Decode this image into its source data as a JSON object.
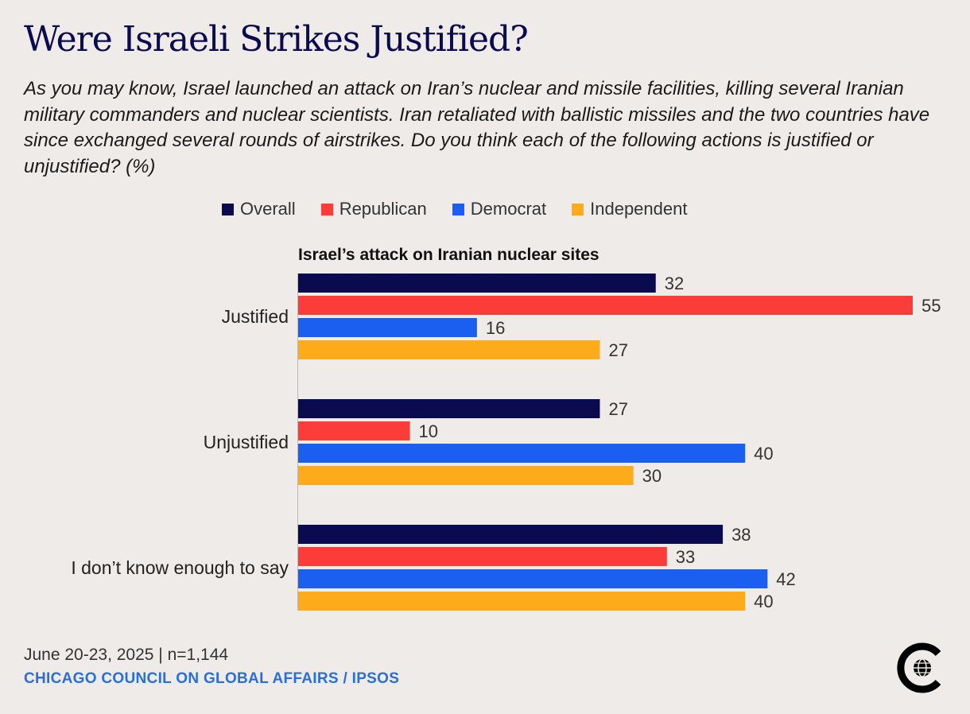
{
  "header": {
    "title": "Were Israeli Strikes Justified?",
    "subtitle": "As you may know, Israel launched an attack on Iran’s nuclear and missile facilities, killing several Iranian military commanders and nuclear scientists. Iran retaliated with ballistic missiles and the two countries have since exchanged several rounds of airstrikes. Do you think each of the following actions is justified or unjustified? (%)"
  },
  "colors": {
    "background": "#efebe8",
    "title": "#0c0a4f",
    "source": "#2a6fd6"
  },
  "chart_data": {
    "type": "bar",
    "orientation": "horizontal",
    "title": "Israel’s attack on Iranian nuclear sites",
    "categories": [
      "Justified",
      "Unjustified",
      "I don’t know enough to say"
    ],
    "series": [
      {
        "name": "Overall",
        "color": "#0a0a4e",
        "values": [
          32,
          27,
          38
        ]
      },
      {
        "name": "Republican",
        "color": "#fb3c38",
        "values": [
          55,
          10,
          33
        ]
      },
      {
        "name": "Democrat",
        "color": "#1a5ff0",
        "values": [
          16,
          40,
          42
        ]
      },
      {
        "name": "Independent",
        "color": "#fdab1a",
        "values": [
          27,
          30,
          40
        ]
      }
    ],
    "xlim": [
      0,
      55
    ],
    "legend_position": "top"
  },
  "footer": {
    "date_sample": "June 20-23, 2025 | n=1,144",
    "source": "CHICAGO COUNCIL ON GLOBAL AFFAIRS / IPSOS"
  },
  "logo": {
    "icon": "chicago-council-globe-logo"
  }
}
